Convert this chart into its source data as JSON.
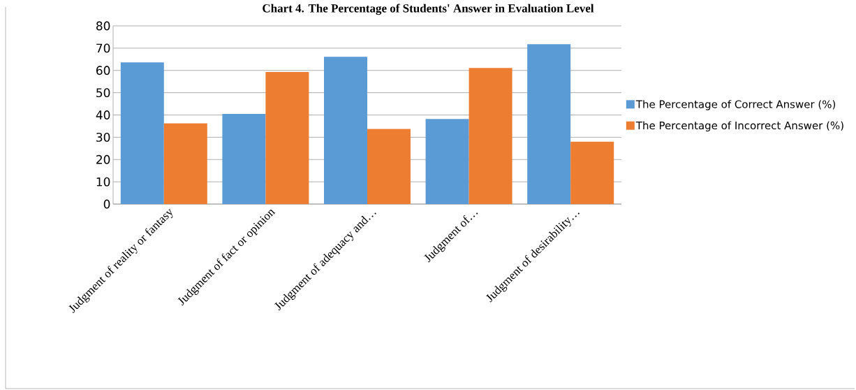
{
  "chart_data": {
    "type": "bar",
    "title": "Chart 4. The Percentage of Students' Answer in Evaluation Level",
    "categories": [
      "Judgment of reality or fantasy",
      "Judgment of fact or opinion",
      "Judgment of adequacy and…",
      "Judgment of…",
      "Judgment of desirability…"
    ],
    "series": [
      {
        "name": "The Percentage of Correct Answer (%)",
        "color": "#5b9bd5",
        "values": [
          63.6,
          40.5,
          66.1,
          38.2,
          71.8
        ]
      },
      {
        "name": "The Percentage of Incorrect Answer (%)",
        "color": "#ed7d31",
        "values": [
          36.2,
          59.3,
          33.7,
          61.1,
          28.0
        ]
      }
    ],
    "ylim": [
      0,
      80
    ],
    "yticks": [
      0,
      10,
      20,
      30,
      40,
      50,
      60,
      70,
      80
    ],
    "grid": "y",
    "legend": "right"
  }
}
